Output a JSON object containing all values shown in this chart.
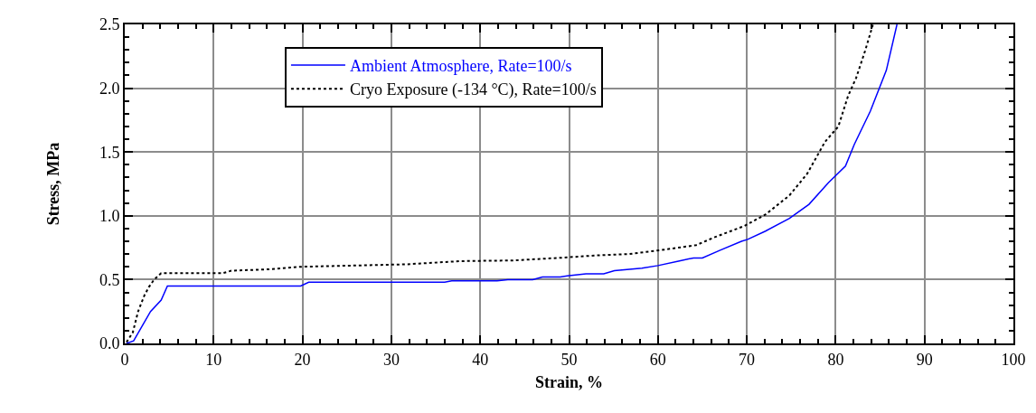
{
  "chart_data": {
    "type": "line",
    "xlabel": "Strain, %",
    "ylabel": "Stress, MPa",
    "xlim": [
      0,
      100
    ],
    "xticks": [
      0,
      10,
      20,
      30,
      40,
      50,
      60,
      70,
      80,
      90,
      100
    ],
    "ylim": [
      0,
      2.5
    ],
    "yticks": [
      {
        "value": 0,
        "label": "0.0"
      },
      {
        "value": 0.5,
        "label": "0.5"
      },
      {
        "value": 1.0,
        "label": "1.0"
      },
      {
        "value": 1.5,
        "label": "1.5"
      },
      {
        "value": 2.0,
        "label": "2.0"
      },
      {
        "value": 2.5,
        "label": "2.5"
      }
    ],
    "grid": true,
    "legend": "top",
    "marker": "none",
    "series": [
      {
        "name": "Ambient Atmosphere, Rate=100/s",
        "color": "#0000ff",
        "line_style": "solid",
        "x": [
          0.2,
          1.0,
          2.9,
          4.1,
          4.8,
          19.8,
          20.7,
          36,
          36.8,
          41.9,
          43.1,
          45.9,
          47,
          49,
          49.8,
          51.9,
          53.9,
          55.1,
          58.2,
          60,
          62.3,
          64,
          65,
          67,
          69.4,
          70.1,
          72.1,
          74.8,
          77,
          79.2,
          81.1,
          82.1,
          83.9,
          85.7,
          86.9
        ],
        "values": [
          0.0,
          0.02,
          0.25,
          0.34,
          0.45,
          0.45,
          0.48,
          0.48,
          0.49,
          0.49,
          0.5,
          0.5,
          0.52,
          0.52,
          0.53,
          0.545,
          0.545,
          0.57,
          0.59,
          0.61,
          0.645,
          0.67,
          0.67,
          0.73,
          0.8,
          0.815,
          0.88,
          0.98,
          1.09,
          1.26,
          1.39,
          1.56,
          1.82,
          2.14,
          2.5
        ]
      },
      {
        "name": "Cryo Exposure (-134 °C), Rate=100/s",
        "color": "#000000",
        "line_style": "dotted",
        "x": [
          0.2,
          0.9,
          1.5,
          2.2,
          2.7,
          3.3,
          4.1,
          11,
          12,
          16,
          19.5,
          25.6,
          31.7,
          37.8,
          43.7,
          48.8,
          53.1,
          56.7,
          60.2,
          64.3,
          66.3,
          69.7,
          72.1,
          74.8,
          76.8,
          78.8,
          80.3,
          81.4,
          82.3,
          83.3,
          84.2
        ],
        "values": [
          0.01,
          0.085,
          0.25,
          0.375,
          0.44,
          0.5,
          0.55,
          0.55,
          0.57,
          0.58,
          0.6,
          0.61,
          0.62,
          0.645,
          0.65,
          0.67,
          0.69,
          0.7,
          0.73,
          0.77,
          0.83,
          0.92,
          1.01,
          1.16,
          1.33,
          1.58,
          1.7,
          1.94,
          2.08,
          2.29,
          2.5
        ]
      }
    ]
  }
}
